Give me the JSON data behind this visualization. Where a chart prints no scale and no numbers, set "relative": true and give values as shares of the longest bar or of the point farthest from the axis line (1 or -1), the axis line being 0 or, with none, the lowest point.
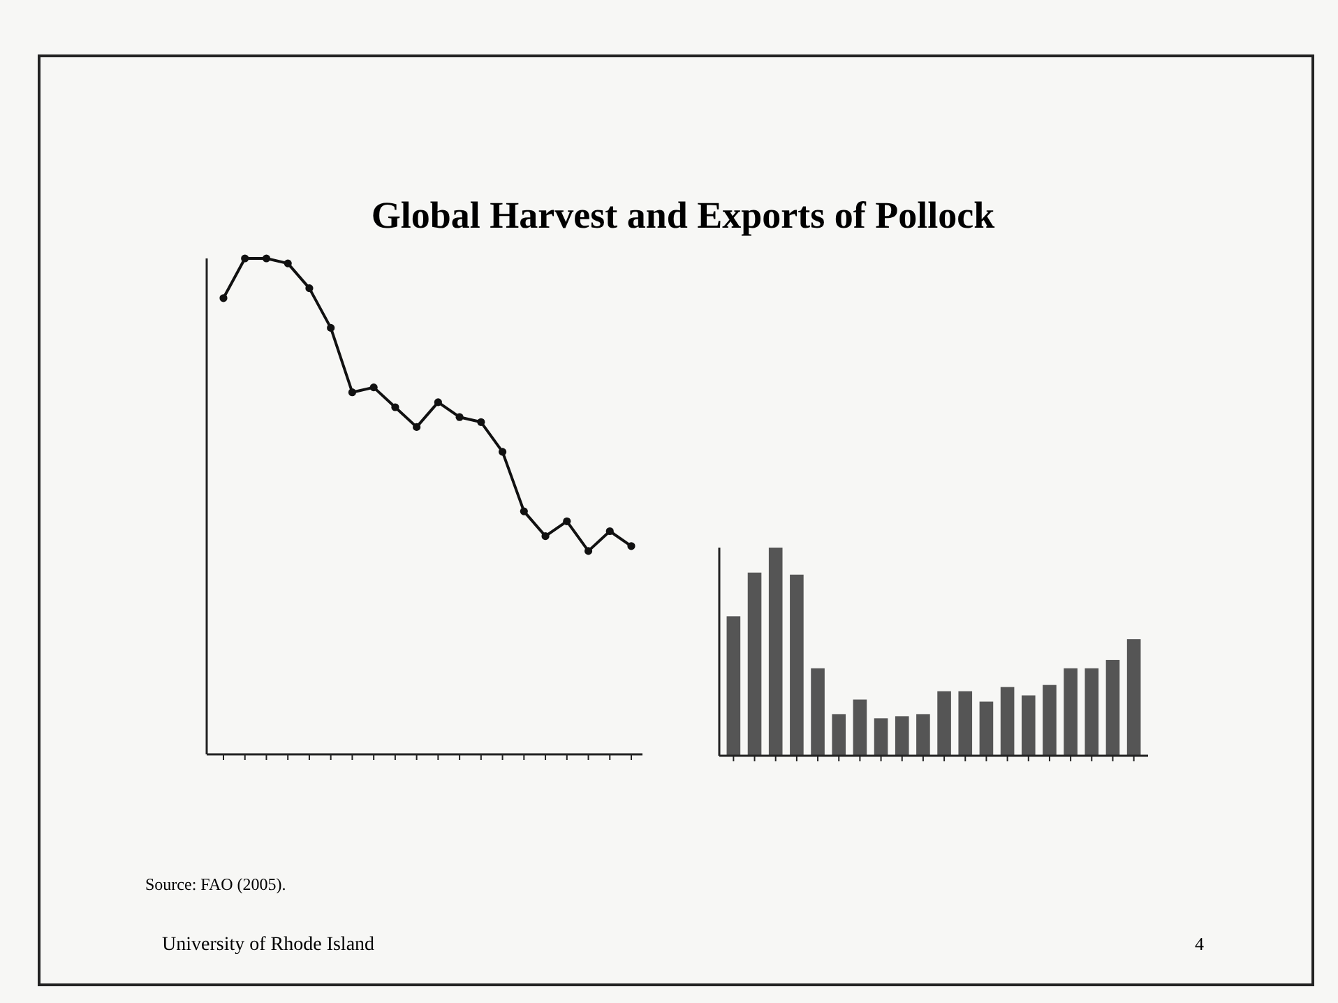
{
  "chart_data": [
    {
      "type": "line",
      "title": "Global Harvest and Exports of Pollock",
      "relative": true,
      "marker": "circle",
      "categories": [
        null,
        null,
        null,
        null,
        null,
        null,
        null,
        null,
        null,
        null,
        null,
        null,
        null,
        null,
        null,
        null,
        null,
        null,
        null,
        null
      ],
      "series": [
        {
          "color": "#111111",
          "values": [
            0.92,
            1,
            1,
            0.99,
            0.94,
            0.86,
            0.73,
            0.74,
            0.7,
            0.66,
            0.71,
            0.68,
            0.67,
            0.61,
            0.49,
            0.44,
            0.47,
            0.41,
            0.45,
            0.42
          ]
        }
      ],
      "annotations": [
        "Source:  FAO (2005).",
        "University of Rhode Island",
        "4"
      ]
    },
    {
      "type": "bar",
      "relative": true,
      "categories": [
        null,
        null,
        null,
        null,
        null,
        null,
        null,
        null,
        null,
        null,
        null,
        null,
        null,
        null,
        null,
        null,
        null,
        null,
        null,
        null
      ],
      "series": [
        {
          "color": "#555555",
          "values": [
            0.67,
            0.88,
            1,
            0.87,
            0.42,
            0.2,
            0.27,
            0.18,
            0.19,
            0.2,
            0.31,
            0.31,
            0.26,
            0.33,
            0.29,
            0.34,
            0.42,
            0.42,
            0.46,
            0.56
          ]
        }
      ]
    }
  ]
}
